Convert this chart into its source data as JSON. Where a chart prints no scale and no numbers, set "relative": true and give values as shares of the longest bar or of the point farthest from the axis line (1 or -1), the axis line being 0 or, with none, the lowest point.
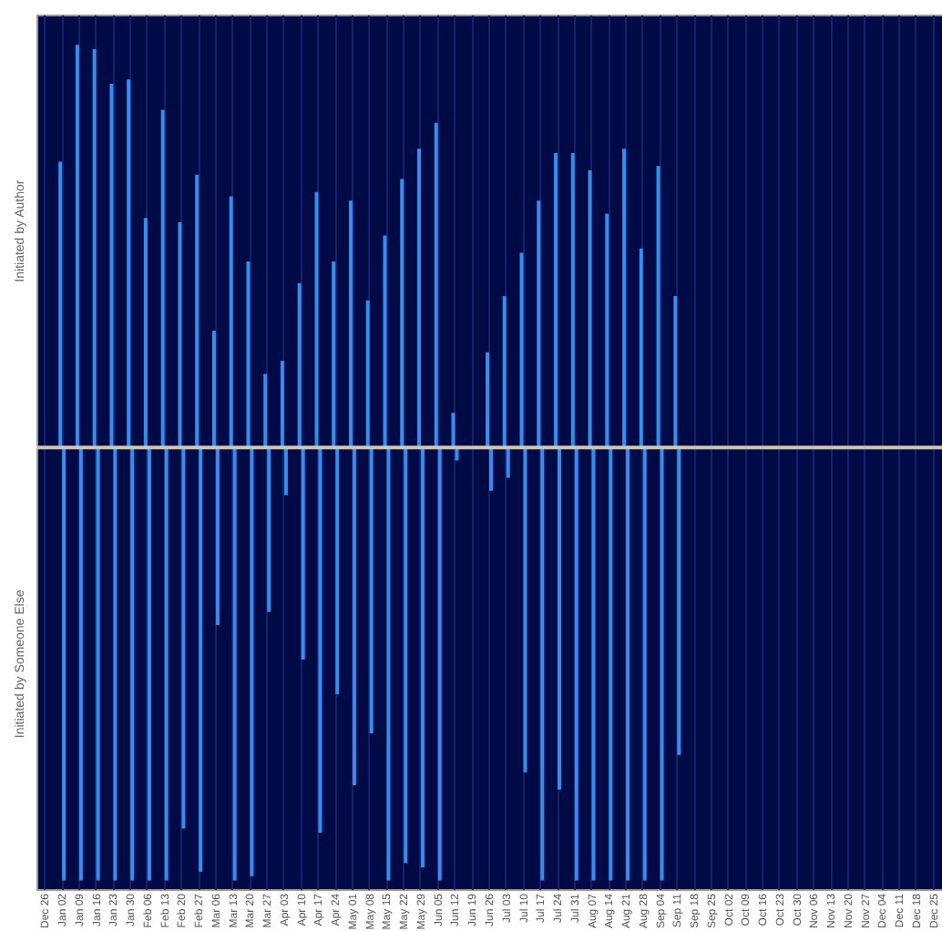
{
  "chart_data": {
    "type": "bar",
    "relative": true,
    "grid": "x",
    "categories": [
      "Dec 26",
      "Jan 02",
      "Jan 09",
      "Jan 16",
      "Jan 23",
      "Jan 30",
      "Feb 06",
      "Feb 13",
      "Feb 20",
      "Feb 27",
      "Mar 06",
      "Mar 13",
      "Mar 20",
      "Mar 27",
      "Apr 03",
      "Apr 10",
      "Apr 17",
      "Apr 24",
      "May 01",
      "May 08",
      "May 15",
      "May 22",
      "May 29",
      "Jun 05",
      "Jun 12",
      "Jun 19",
      "Jun 26",
      "Jul 03",
      "Jul 10",
      "Jul 17",
      "Jul 24",
      "Jul 31",
      "Aug 07",
      "Aug 14",
      "Aug 21",
      "Aug 28",
      "Sep 04",
      "Sep 11",
      "Sep 18",
      "Sep 25",
      "Oct 02",
      "Oct 09",
      "Oct 16",
      "Oct 23",
      "Oct 30",
      "Nov 06",
      "Nov 13",
      "Nov 20",
      "Nov 27",
      "Dec 04",
      "Dec 11",
      "Dec 18",
      "Dec 25"
    ],
    "series": [
      {
        "name": "Initiated by Author",
        "color": "#2f8ff2",
        "values": [
          null,
          0.66,
          0.93,
          0.92,
          0.84,
          0.85,
          0.53,
          0.78,
          0.52,
          0.63,
          0.27,
          0.58,
          0.43,
          0.17,
          0.2,
          0.38,
          0.59,
          0.43,
          0.57,
          0.34,
          0.49,
          0.62,
          0.69,
          0.75,
          0.08,
          null,
          0.22,
          0.35,
          0.45,
          0.57,
          0.68,
          0.68,
          0.64,
          0.54,
          0.69,
          0.46,
          0.65,
          0.35,
          null,
          null,
          null,
          null,
          null,
          null,
          null,
          null,
          null,
          null,
          null,
          null,
          null,
          null,
          null
        ]
      },
      {
        "name": "Initiated by Someone Else",
        "color": "#2f8ff2",
        "values": [
          null,
          -1,
          -1,
          -1,
          -1,
          -1,
          -1,
          -1,
          -0.88,
          -0.98,
          -0.41,
          -1,
          -0.99,
          -0.38,
          -0.11,
          -0.49,
          -0.89,
          -0.57,
          -0.78,
          -0.66,
          -1,
          -0.96,
          -0.97,
          -1,
          -0.03,
          null,
          -0.1,
          -0.07,
          -0.75,
          -1,
          -0.79,
          -1,
          -1,
          -1,
          -1,
          -1,
          -1,
          -0.71,
          null,
          null,
          null,
          null,
          null,
          null,
          null,
          null,
          null,
          null,
          null,
          null,
          null,
          null,
          null
        ]
      }
    ]
  }
}
